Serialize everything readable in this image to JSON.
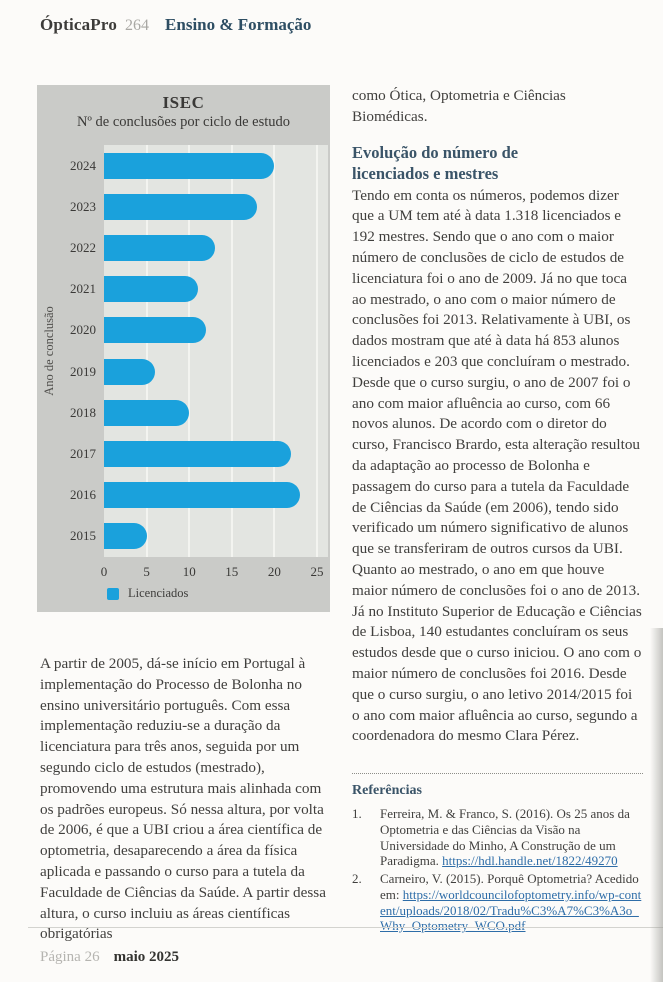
{
  "header": {
    "brand": "ÓpticaPro",
    "issue": "264",
    "section": "Ensino & Formação"
  },
  "chart_data": {
    "type": "bar",
    "orientation": "horizontal",
    "title": "ISEC",
    "subtitle": "Nº de conclusões por ciclo de estudo",
    "ylabel": "Ano de conclusão",
    "categories": [
      "2024",
      "2023",
      "2022",
      "2021",
      "2020",
      "2019",
      "2018",
      "2017",
      "2016",
      "2015"
    ],
    "series": [
      {
        "name": "Licenciados",
        "values": [
          20,
          18,
          13,
          11,
          12,
          6,
          10,
          22,
          23,
          5
        ]
      }
    ],
    "xlim": [
      0,
      25
    ],
    "xticks": [
      0,
      5,
      10,
      15,
      20,
      25
    ],
    "grid": "vertical-white-lines",
    "legend_position": "bottom-left",
    "bar_color": "#1aa1dc",
    "panel_color": "#cacbc8",
    "plot_color": "#e3e5e1"
  },
  "left_column": {
    "paragraph": "A partir de 2005, dá-se início em Portugal à implementação do Processo de Bolonha no ensino universitário português. Com essa implementação reduziu-se a duração da licenciatura para três anos, seguida por um segundo ciclo de estudos (mestrado), promovendo uma estrutura mais alinhada com os padrões europeus. Só nessa altura, por volta de 2006, é que a UBI criou a área científica de optometria, desaparecendo a área da física aplicada e passando o curso para a tutela da Faculdade de Ciências da Saúde. A partir dessa altura, o curso incluiu as áreas científicas obrigatórias"
  },
  "right_column": {
    "intro": "como Ótica, Optometria e Ciências Biomédicas.",
    "heading_line1": "Evolução do número de",
    "heading_line2": "licenciados e mestres",
    "para1": "Tendo em conta os números, podemos dizer que a UM tem até à data 1.318 licenciados e 192 mestres. Sendo que o ano com o maior número de conclusões de ciclo de estudos de licenciatura foi o ano de 2009. Já no que toca ao mestrado, o ano com o maior número de conclusões foi 2013. Relativamente à UBI, os dados mostram que até à data há 853 alunos licenciados e 203 que concluíram o mestrado. Desde que o curso surgiu, o ano de 2007 foi o ano com maior afluência ao curso, com 66 novos alunos. De acordo com o diretor do curso, Francisco Brardo, esta alteração resultou da adaptação ao processo de Bolonha e passagem do curso para a tutela da Faculdade de Ciências da Saúde (em 2006), tendo sido verificado um número significativo de alunos que se transferiram de outros cursos da UBI. Quanto ao mestrado, o ano em que houve maior número de conclusões foi o ano de 2013.",
    "para2": "Já no Instituto Superior de Educação e Ciências de Lisboa, 140 estudantes concluíram os seus estudos desde que o curso iniciou. O ano com o maior número de conclusões foi 2016. Desde que o curso surgiu, o ano letivo 2014/2015 foi o ano com maior afluência ao curso, segundo a coordenadora do mesmo Clara Pérez."
  },
  "references": {
    "heading": "Referências",
    "items": [
      {
        "num": "1.",
        "text": "Ferreira, M. & Franco, S. (2016). Os 25 anos da Optometria e das Ciências da Visão na Universidade do Minho, A Construção de um Paradigma. ",
        "link": "https://hdl.handle.net/1822/49270"
      },
      {
        "num": "2.",
        "text": "Carneiro, V. (2015). Porquê Optometria? Acedido em: ",
        "link": "https://worldcouncilofoptometry.info/wp-content/uploads/2018/02/Tradu%C3%A7%C3%A3o_Why_Optometry_WCO.pdf"
      }
    ]
  },
  "footer": {
    "page": "Página 26",
    "date": "maio 2025"
  }
}
